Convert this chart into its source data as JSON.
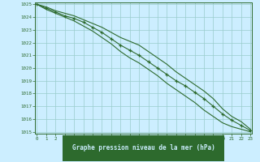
{
  "hours": [
    0,
    1,
    2,
    3,
    4,
    5,
    6,
    7,
    8,
    9,
    10,
    11,
    12,
    13,
    14,
    15,
    16,
    17,
    18,
    19,
    20,
    21,
    22,
    23
  ],
  "line_upper": [
    1025.0,
    1024.8,
    1024.5,
    1024.3,
    1024.1,
    1023.8,
    1023.5,
    1023.2,
    1022.8,
    1022.4,
    1022.1,
    1021.8,
    1021.3,
    1020.8,
    1020.3,
    1019.7,
    1019.2,
    1018.7,
    1018.2,
    1017.6,
    1016.8,
    1016.2,
    1015.8,
    1015.2
  ],
  "line_mid": [
    1025.0,
    1024.7,
    1024.4,
    1024.1,
    1023.9,
    1023.6,
    1023.2,
    1022.8,
    1022.3,
    1021.8,
    1021.4,
    1021.0,
    1020.5,
    1020.0,
    1019.5,
    1019.0,
    1018.6,
    1018.1,
    1017.6,
    1017.0,
    1016.4,
    1015.9,
    1015.5,
    1015.1
  ],
  "line_lower": [
    1025.0,
    1024.6,
    1024.3,
    1024.0,
    1023.7,
    1023.3,
    1022.9,
    1022.4,
    1021.9,
    1021.3,
    1020.8,
    1020.4,
    1019.9,
    1019.4,
    1018.8,
    1018.3,
    1017.8,
    1017.3,
    1016.7,
    1016.2,
    1015.7,
    1015.4,
    1015.2,
    1015.0
  ],
  "line_color": "#2d6a2d",
  "bg_color": "#cceeff",
  "grid_color": "#99cccc",
  "border_color": "#2d6a2d",
  "label_bg": "#2d6a2d",
  "label_fg": "#cceeff",
  "tick_color": "#2d6a2d",
  "xlabel": "Graphe pression niveau de la mer (hPa)",
  "ylim": [
    1015,
    1025
  ],
  "xlim": [
    0,
    23
  ],
  "yticks": [
    1015,
    1016,
    1017,
    1018,
    1019,
    1020,
    1021,
    1022,
    1023,
    1024,
    1025
  ],
  "xticks": [
    0,
    1,
    2,
    3,
    4,
    5,
    6,
    7,
    8,
    9,
    10,
    11,
    12,
    13,
    14,
    15,
    16,
    17,
    18,
    19,
    20,
    21,
    22,
    23
  ]
}
